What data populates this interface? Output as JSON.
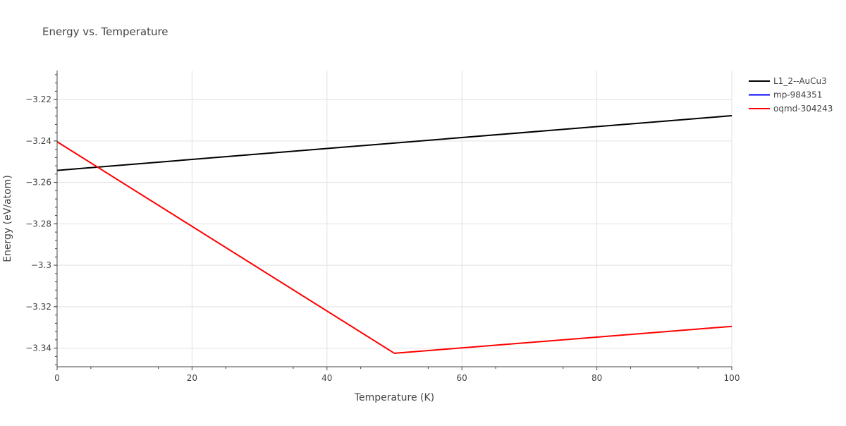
{
  "chart_data": {
    "type": "line",
    "title": "Energy vs. Temperature",
    "xlabel": "Temperature (K)",
    "ylabel": "Energy (eV/atom)",
    "xlim": [
      0,
      100
    ],
    "ylim": [
      -3.349,
      -3.206
    ],
    "x_ticks": [
      0,
      20,
      40,
      60,
      80,
      100
    ],
    "x_tick_labels": [
      "0",
      "20",
      "40",
      "60",
      "80",
      "100"
    ],
    "y_ticks": [
      -3.22,
      -3.24,
      -3.26,
      -3.28,
      -3.3,
      -3.32,
      -3.34
    ],
    "y_tick_labels": [
      "−3.22",
      "−3.24",
      "−3.26",
      "−3.28",
      "−3.3",
      "−3.32",
      "−3.34"
    ],
    "grid": true,
    "legend_position": "top-right",
    "series": [
      {
        "name": "L1_2--AuCu3",
        "color": "#000000",
        "x": [
          0,
          100
        ],
        "y": [
          -3.2542,
          -3.2278
        ]
      },
      {
        "name": "mp-984351",
        "color": "#0000ff",
        "x": [],
        "y": []
      },
      {
        "name": "oqmd-304243",
        "color": "#ff0000",
        "x": [
          0,
          50,
          100
        ],
        "y": [
          -3.2404,
          -3.3425,
          -3.3295
        ]
      }
    ]
  }
}
